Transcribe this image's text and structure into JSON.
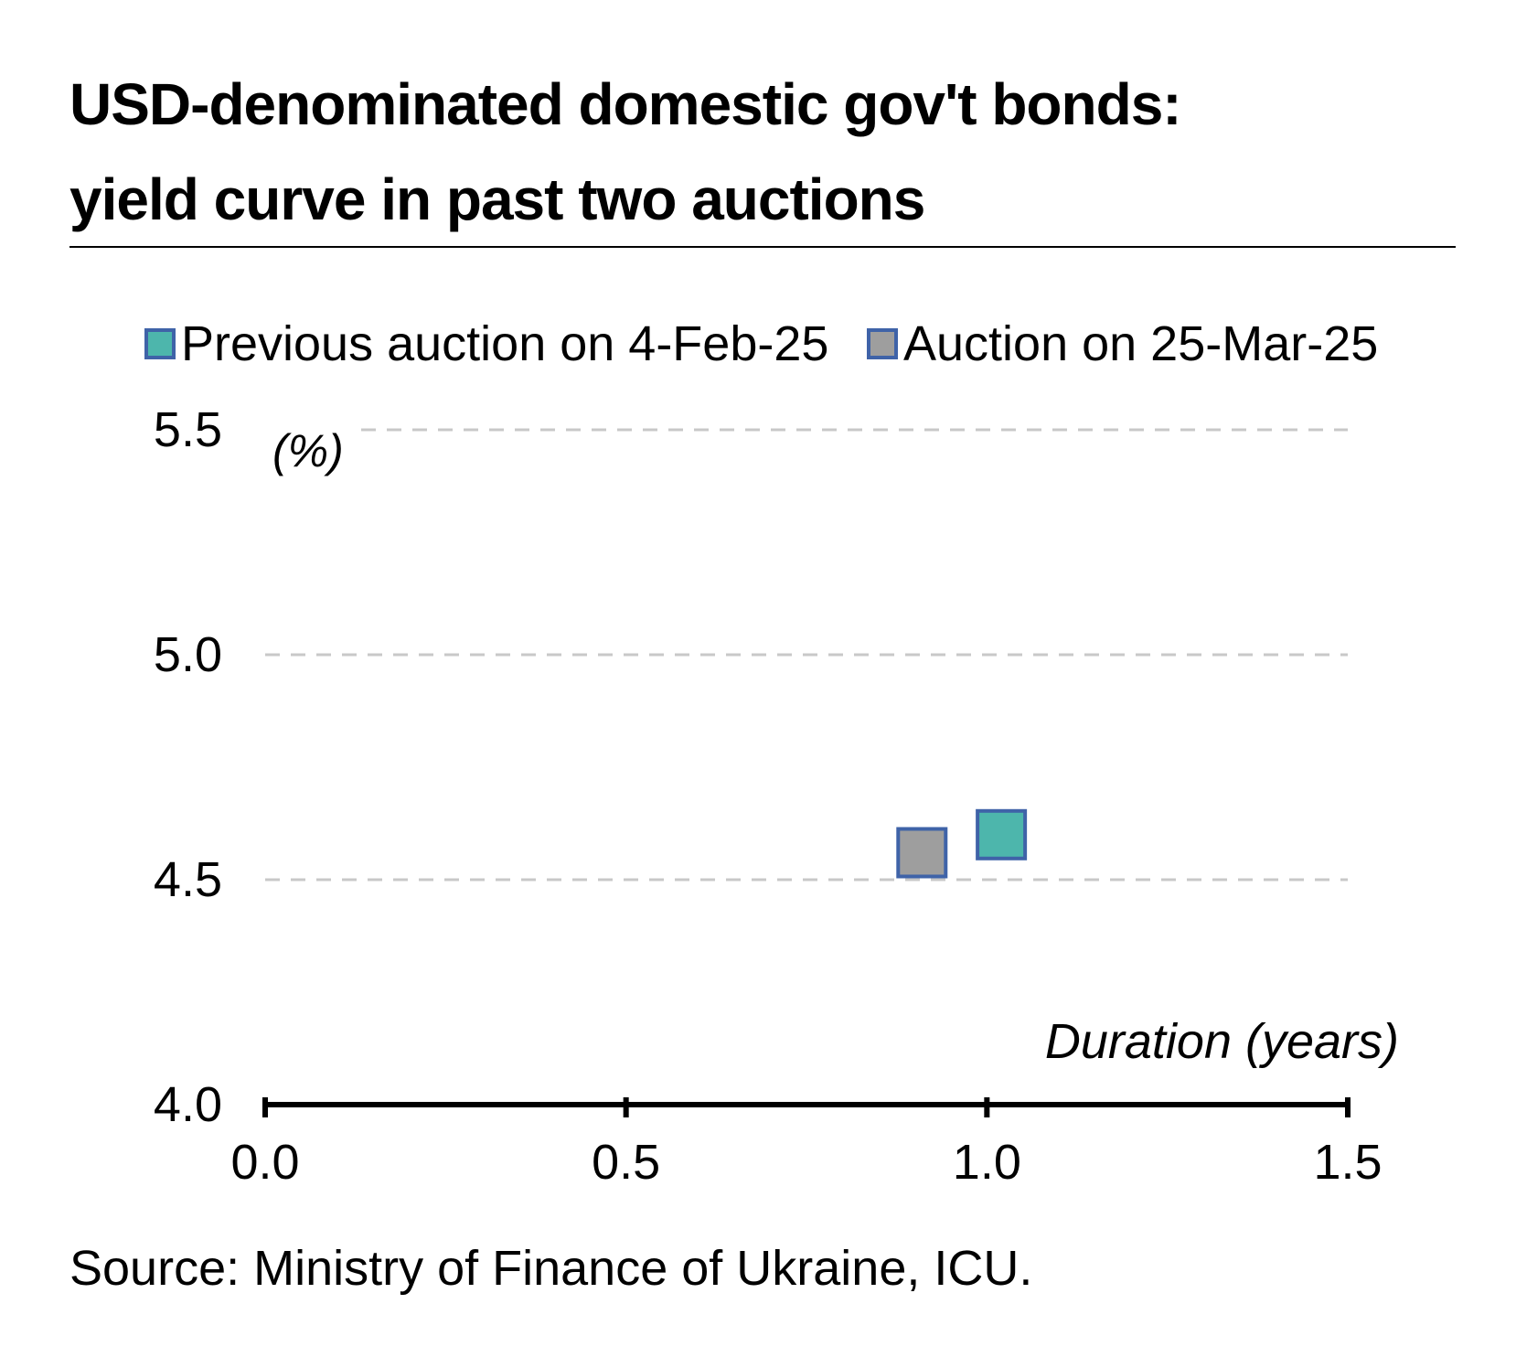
{
  "title_lines": [
    "USD-denominated domestic gov't bonds:",
    "yield curve in past two auctions"
  ],
  "source": "Source: Ministry of Finance of Ukraine, ICU.",
  "colors": {
    "prev": "#4db6ac",
    "curr": "#9e9e9e",
    "marker_border": "#3f63a8",
    "grid": "#c8c8c8",
    "axis": "#000000"
  },
  "legend": [
    {
      "label": "Previous auction on 4-Feb-25",
      "color": "#4db6ac"
    },
    {
      "label": "Auction on 25-Mar-25",
      "color": "#9e9e9e"
    }
  ],
  "chart_data": {
    "type": "scatter",
    "title": "USD-denominated domestic gov't bonds: yield curve in past two auctions",
    "xlabel": "Duration (years)",
    "ylabel": "(%)",
    "xlim": [
      0.0,
      1.5
    ],
    "ylim": [
      4.0,
      5.5
    ],
    "xticks": [
      "0.0",
      "0.5",
      "1.0",
      "1.5"
    ],
    "yticks": [
      "4.0",
      "4.5",
      "5.0",
      "5.5"
    ],
    "grid": "horizontal dashed",
    "legend_position": "top",
    "series": [
      {
        "name": "Previous auction on 4-Feb-25",
        "marker": "square",
        "points": [
          {
            "x": 1.02,
            "y": 4.6
          }
        ]
      },
      {
        "name": "Auction on 25-Mar-25",
        "marker": "square",
        "points": [
          {
            "x": 0.91,
            "y": 4.56
          }
        ]
      }
    ]
  }
}
